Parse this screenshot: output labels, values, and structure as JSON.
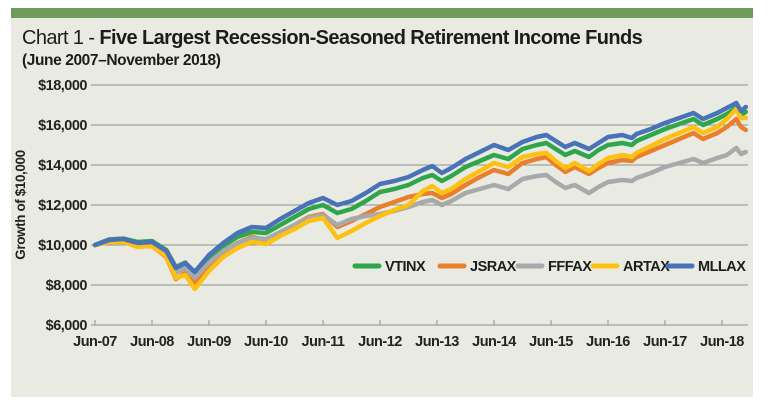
{
  "panel": {
    "accent_bar_color": "#6e9c5f",
    "background_color": "#e9ebe2",
    "title_prefix": "Chart 1 - ",
    "title_bold": "Five Largest Recession-Seasoned Retirement Income Funds",
    "subtitle": "(June 2007–November 2018)"
  },
  "chart_data": {
    "type": "line",
    "title": "Chart 1 - Five Largest Recession-Seasoned Retirement Income Funds (June 2007–November 2018)",
    "xlabel": "",
    "ylabel": "Growth of $10,000",
    "ylim": [
      6000,
      18000
    ],
    "ytick_step": 2000,
    "ytick_labels": [
      "$6,000",
      "$8,000",
      "$10,000",
      "$12,000",
      "$14,000",
      "$16,000",
      "$18,000"
    ],
    "xtick_labels": [
      "Jun-07",
      "Jun-08",
      "Jun-09",
      "Jun-10",
      "Jun-11",
      "Jun-12",
      "Jun-13",
      "Jun-14",
      "Jun-15",
      "Jun-16",
      "Jun-17",
      "Jun-18"
    ],
    "xtick_months": [
      0,
      12,
      24,
      36,
      48,
      60,
      72,
      84,
      96,
      108,
      120,
      132
    ],
    "x_unit": "months since Jun-2007",
    "x_months": [
      0,
      3,
      6,
      9,
      12,
      15,
      17,
      19,
      21,
      24,
      27,
      30,
      33,
      36,
      39,
      42,
      45,
      48,
      51,
      54,
      57,
      60,
      63,
      66,
      69,
      71,
      73,
      75,
      78,
      81,
      84,
      87,
      90,
      93,
      95,
      97,
      99,
      101,
      104,
      106,
      108,
      111,
      113,
      114,
      117,
      120,
      123,
      126,
      128,
      131,
      133,
      135,
      136,
      137
    ],
    "grid": true,
    "legend_position": "inside-bottom-right",
    "series": [
      {
        "name": "VTINX",
        "color": "#2fa64c",
        "values": [
          10000,
          10280,
          10320,
          10150,
          10200,
          9750,
          8900,
          9120,
          8600,
          9400,
          9950,
          10400,
          10650,
          10600,
          11000,
          11400,
          11800,
          12000,
          11600,
          11800,
          12200,
          12650,
          12800,
          13000,
          13350,
          13500,
          13200,
          13450,
          13900,
          14200,
          14500,
          14300,
          14800,
          15000,
          15100,
          14800,
          14500,
          14700,
          14400,
          14750,
          15000,
          15100,
          15000,
          15200,
          15500,
          15800,
          16050,
          16300,
          16000,
          16300,
          16550,
          16850,
          16500,
          16650
        ]
      },
      {
        "name": "JSRAX",
        "color": "#e97e2d",
        "values": [
          10000,
          10200,
          10220,
          9950,
          9950,
          9400,
          8300,
          8600,
          8050,
          9000,
          9650,
          10100,
          10400,
          10250,
          10650,
          11000,
          11400,
          11550,
          10900,
          11200,
          11550,
          11900,
          12150,
          12400,
          12550,
          12600,
          12350,
          12550,
          13000,
          13400,
          13750,
          13550,
          14100,
          14300,
          14400,
          14000,
          13650,
          13900,
          13550,
          13850,
          14100,
          14250,
          14200,
          14400,
          14700,
          15000,
          15300,
          15600,
          15300,
          15600,
          15900,
          16300,
          15900,
          15750
        ]
      },
      {
        "name": "FFFAX",
        "color": "#a8a9ab",
        "values": [
          10000,
          10150,
          10200,
          9950,
          10000,
          9500,
          8600,
          8850,
          8350,
          9100,
          9700,
          10100,
          10350,
          10300,
          10650,
          11000,
          11350,
          11500,
          11000,
          11300,
          11450,
          11550,
          11700,
          11900,
          12150,
          12250,
          12000,
          12200,
          12600,
          12800,
          13000,
          12800,
          13300,
          13450,
          13500,
          13150,
          12850,
          13000,
          12600,
          12900,
          13150,
          13250,
          13200,
          13350,
          13600,
          13900,
          14100,
          14300,
          14100,
          14350,
          14500,
          14850,
          14550,
          14650
        ]
      },
      {
        "name": "ARTAX",
        "color": "#fdc112",
        "values": [
          10000,
          10150,
          10150,
          9900,
          9950,
          9450,
          8350,
          8500,
          7800,
          8700,
          9400,
          9850,
          10150,
          10050,
          10450,
          10800,
          11200,
          11350,
          10350,
          10700,
          11100,
          11450,
          11750,
          12000,
          12700,
          12950,
          12600,
          12800,
          13300,
          13700,
          14100,
          13900,
          14400,
          14550,
          14600,
          14200,
          13850,
          14100,
          13700,
          14050,
          14350,
          14500,
          14400,
          14600,
          14950,
          15300,
          15600,
          15900,
          15600,
          15900,
          16300,
          16800,
          16350,
          16350
        ]
      },
      {
        "name": "MLLAX",
        "color": "#4a72b8",
        "values": [
          10000,
          10250,
          10300,
          10100,
          10150,
          9700,
          8850,
          9100,
          8650,
          9500,
          10100,
          10600,
          10900,
          10850,
          11300,
          11700,
          12100,
          12350,
          12000,
          12200,
          12600,
          13050,
          13200,
          13400,
          13750,
          13950,
          13600,
          13850,
          14300,
          14650,
          15000,
          14750,
          15150,
          15400,
          15500,
          15200,
          14900,
          15100,
          14800,
          15100,
          15400,
          15500,
          15350,
          15550,
          15800,
          16100,
          16350,
          16600,
          16300,
          16600,
          16850,
          17100,
          16700,
          16900
        ]
      }
    ]
  }
}
